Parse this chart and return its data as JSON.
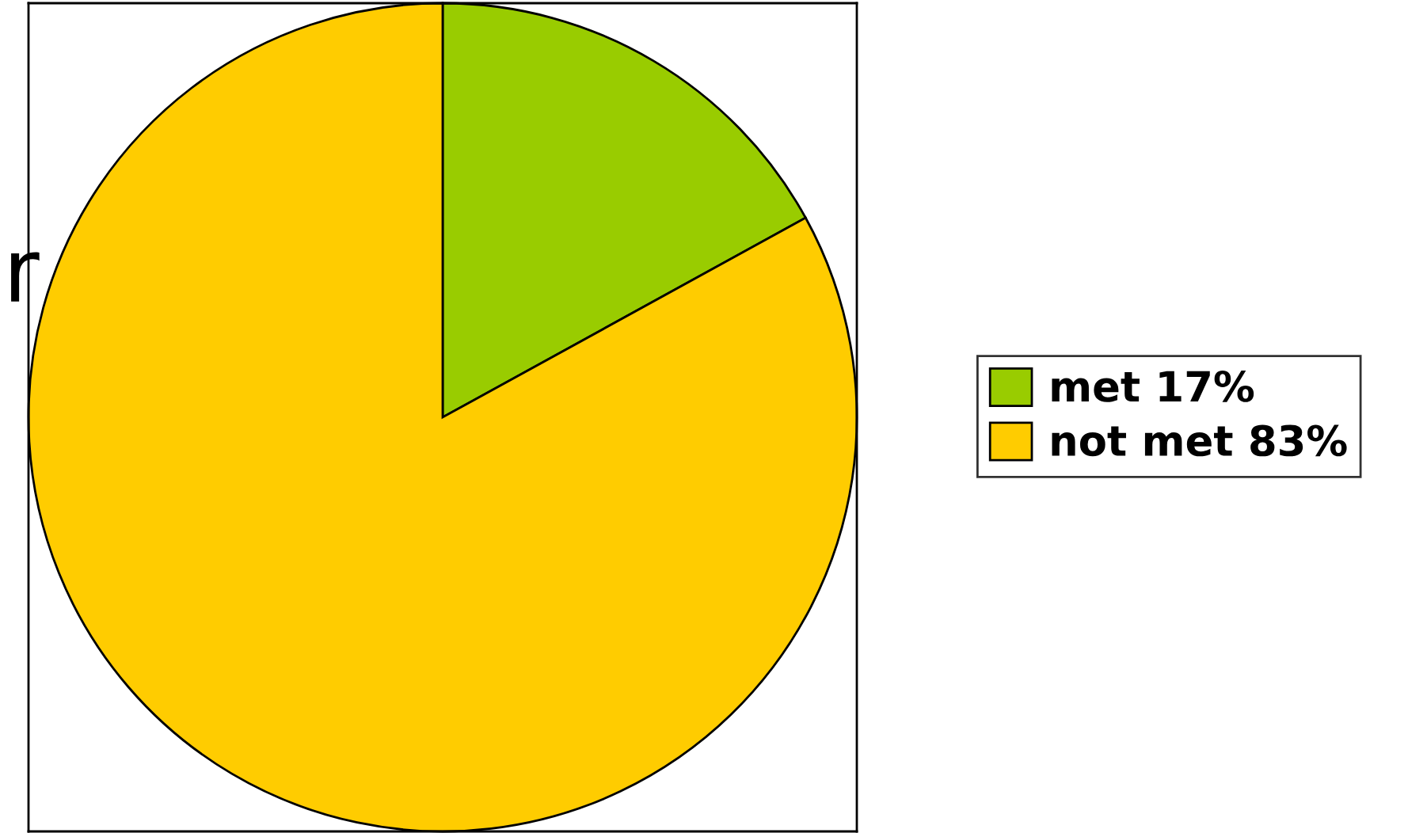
{
  "chart_data": {
    "type": "pie",
    "categories": [
      "met 17%",
      "not met 83%"
    ],
    "values": [
      17,
      83
    ],
    "colors": [
      "#99cc00",
      "#ffcc00"
    ],
    "legend": "right",
    "annotations": [
      "r"
    ]
  }
}
